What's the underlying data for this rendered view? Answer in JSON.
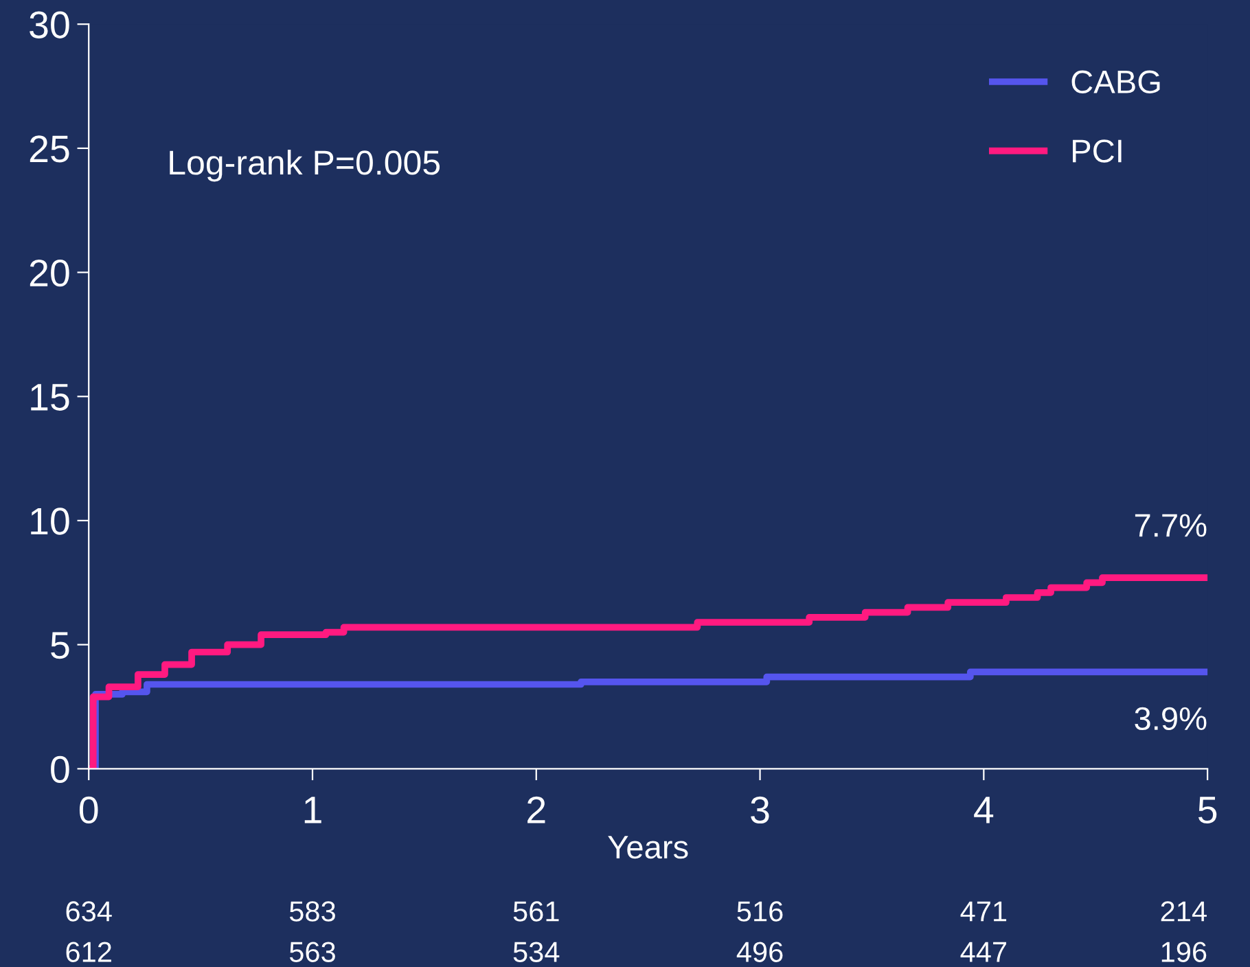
{
  "chart_data": {
    "type": "step",
    "xlabel": "Years",
    "xlim": [
      0,
      5
    ],
    "xticks": [
      0,
      1,
      2,
      3,
      4,
      5
    ],
    "ylim": [
      0,
      30
    ],
    "yticks": [
      0,
      5,
      10,
      15,
      20,
      25,
      30
    ],
    "grid": false,
    "legend": "top right",
    "marker": "none",
    "line_style": "solid",
    "series": [
      {
        "name": "CABG",
        "color": "#5555ee",
        "x": [
          0,
          0.03,
          0.15,
          0.26,
          2.2,
          3.03,
          3.94,
          5
        ],
        "values": [
          0,
          3.0,
          3.1,
          3.4,
          3.5,
          3.7,
          3.9,
          3.9
        ]
      },
      {
        "name": "PCI",
        "color": "#ff1a80",
        "x": [
          0,
          0.02,
          0.09,
          0.22,
          0.34,
          0.46,
          0.62,
          0.77,
          1.06,
          1.14,
          2.72,
          3.22,
          3.47,
          3.66,
          3.84,
          4.1,
          4.24,
          4.3,
          4.46,
          4.53,
          5
        ],
        "values": [
          0,
          2.9,
          3.3,
          3.8,
          4.2,
          4.7,
          5.0,
          5.4,
          5.5,
          5.7,
          5.9,
          6.1,
          6.3,
          6.5,
          6.7,
          6.9,
          7.1,
          7.3,
          7.5,
          7.7,
          7.7
        ]
      }
    ],
    "annotations": [
      "Log-rank P=0.005",
      {
        "text": "7.7%",
        "x": 5,
        "y": 7.7
      },
      {
        "text": "3.9%",
        "x": 5,
        "y": 3.9
      },
      "634",
      "583",
      "561",
      "516",
      "471",
      "214",
      "612",
      "563",
      "534",
      "496",
      "447",
      "196"
    ]
  }
}
